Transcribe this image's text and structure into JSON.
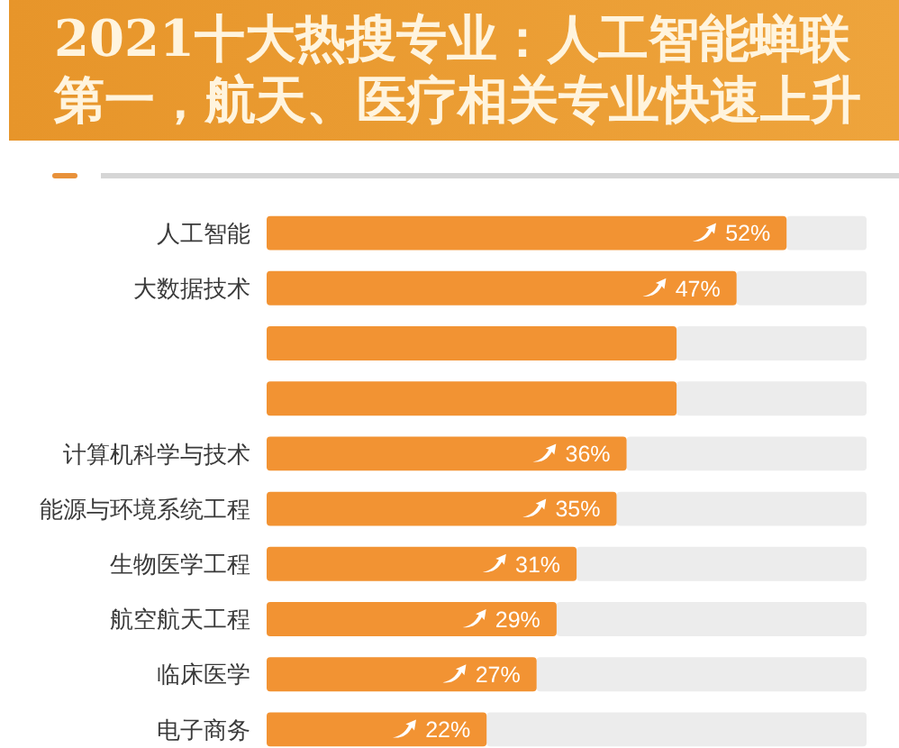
{
  "chart_data": {
    "type": "bar",
    "orientation": "horizontal",
    "title": "2021十大热搜专业：人工智能蝉联第一，航天、医疗相关专业快速上升",
    "categories": [
      "人工智能",
      "大数据技术",
      null,
      null,
      "计算机科学与技术",
      "能源与环境系统工程",
      "生物医学工程",
      "航空航天工程",
      "临床医学",
      "电子商务"
    ],
    "values": [
      52,
      47,
      41,
      41,
      36,
      35,
      31,
      29,
      27,
      22
    ],
    "value_labels": [
      "52%",
      "47%",
      null,
      null,
      "36%",
      "35%",
      "31%",
      "29%",
      "27%",
      "22%"
    ],
    "color": "#f29333",
    "xlim": [
      0,
      60
    ],
    "tick_labels": "y"
  }
}
